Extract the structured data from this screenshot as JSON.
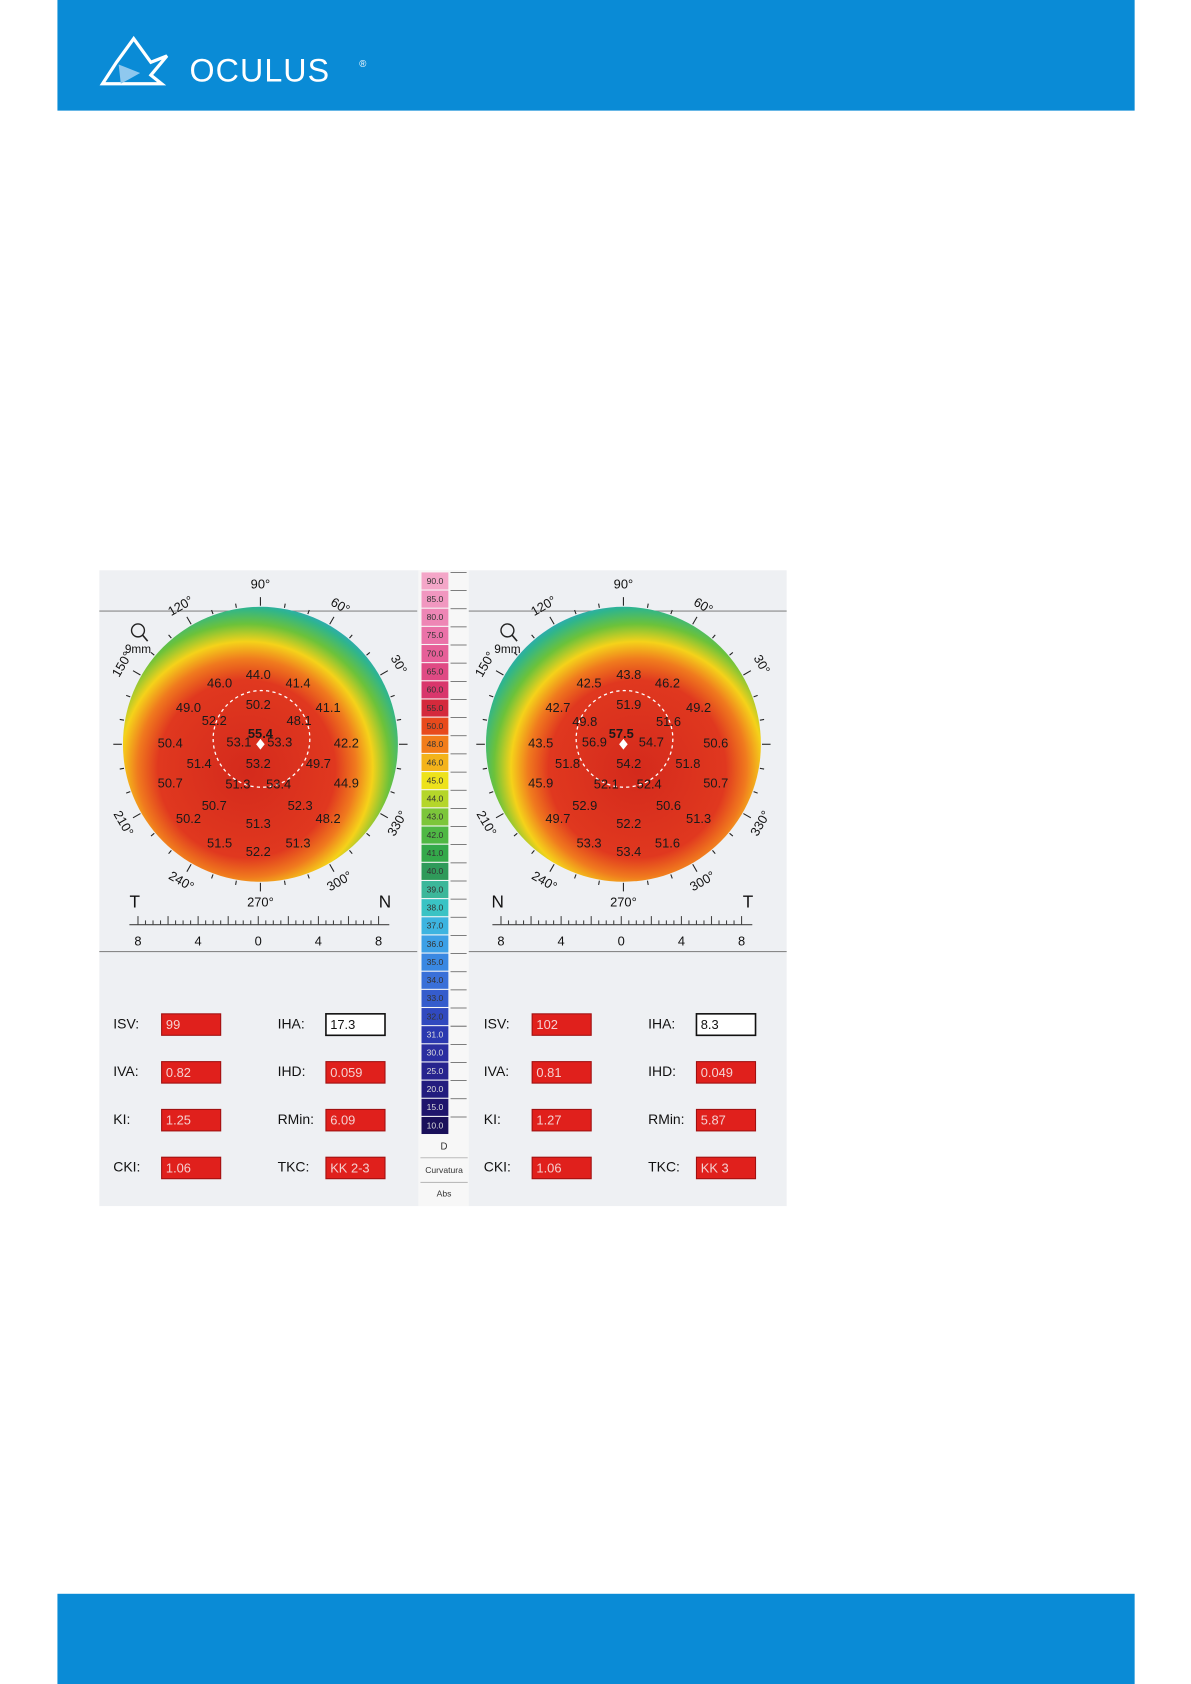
{
  "header": {
    "logo": "OCULUS",
    "registered": "®"
  },
  "figure": {
    "scale": {
      "labels": [
        "90.0",
        "85.0",
        "80.0",
        "75.0",
        "70.0",
        "65.0",
        "60.0",
        "55.0",
        "50.0",
        "48.0",
        "46.0",
        "45.0",
        "44.0",
        "43.0",
        "42.0",
        "41.0",
        "40.0",
        "39.0",
        "38.0",
        "37.0",
        "36.0",
        "35.0",
        "34.0",
        "33.0",
        "32.0",
        "31.0",
        "30.0",
        "25.0",
        "20.0",
        "15.0",
        "10.0"
      ],
      "unit": "D",
      "mode": "Curvatura",
      "ref": "Abs"
    },
    "maps": [
      {
        "zoom": "9mm",
        "angles": [
          "90°",
          "60°",
          "30°",
          "330°",
          "300°",
          "270°",
          "240°",
          "210°",
          "150°",
          "120°"
        ],
        "side_left": "T",
        "side_right": "N",
        "ruler": [
          "8",
          "4",
          "0",
          "4",
          "8"
        ],
        "values": [
          "46.0",
          "44.0",
          "41.4",
          "49.0",
          "50.2",
          "48.1",
          "41.1",
          "52.2",
          "55.4",
          "50.4",
          "53.1",
          "53.3",
          "42.2",
          "51.4",
          "53.2",
          "49.7",
          "50.7",
          "51.3",
          "53.4",
          "44.9",
          "50.7",
          "52.3",
          "50.2",
          "51.3",
          "48.2",
          "51.5",
          "52.2",
          "51.3"
        ],
        "indices": [
          {
            "label": "ISV:",
            "value": "99"
          },
          {
            "label": "IHA:",
            "value": "17.3"
          },
          {
            "label": "IVA:",
            "value": "0.82"
          },
          {
            "label": "IHD:",
            "value": "0.059"
          },
          {
            "label": "KI:",
            "value": "1.25"
          },
          {
            "label": "RMin:",
            "value": "6.09"
          },
          {
            "label": "CKI:",
            "value": "1.06"
          },
          {
            "label": "TKC:",
            "value": "KK 2-3"
          }
        ]
      },
      {
        "zoom": "9mm",
        "angles": [
          "90°",
          "60°",
          "30°",
          "330°",
          "300°",
          "270°",
          "240°",
          "210°",
          "150°",
          "120°"
        ],
        "side_left": "N",
        "side_right": "T",
        "ruler": [
          "8",
          "4",
          "0",
          "4",
          "8"
        ],
        "values": [
          "42.5",
          "43.8",
          "46.2",
          "42.7",
          "51.9",
          "49.2",
          "49.8",
          "57.5",
          "51.6",
          "43.5",
          "56.9",
          "54.7",
          "50.6",
          "51.8",
          "54.2",
          "51.8",
          "45.9",
          "52.1",
          "52.4",
          "50.7",
          "52.9",
          "50.6",
          "49.7",
          "52.2",
          "51.3",
          "53.3",
          "53.4",
          "51.6"
        ],
        "indices": [
          {
            "label": "ISV:",
            "value": "102"
          },
          {
            "label": "IHA:",
            "value": "8.3"
          },
          {
            "label": "IVA:",
            "value": "0.81"
          },
          {
            "label": "IHD:",
            "value": "0.049"
          },
          {
            "label": "KI:",
            "value": "1.27"
          },
          {
            "label": "RMin:",
            "value": "5.87"
          },
          {
            "label": "CKI:",
            "value": "1.06"
          },
          {
            "label": "TKC:",
            "value": "KK 3"
          }
        ]
      }
    ]
  }
}
